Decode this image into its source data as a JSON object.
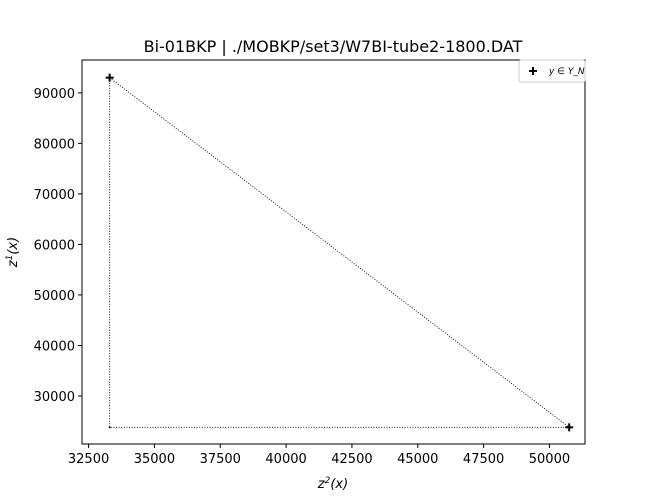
{
  "chart_data": {
    "type": "scatter",
    "title": "Bi-01BKP | ./MOBKP/set3/W7BI-tube2-1800.DAT",
    "xlabel": "z²(x)",
    "ylabel": "z¹(x)",
    "xlim": [
      32250,
      51350
    ],
    "ylim": [
      20500,
      96500
    ],
    "x_ticks": [
      32500,
      35000,
      37500,
      40000,
      42500,
      45000,
      47500,
      50000
    ],
    "y_ticks": [
      30000,
      40000,
      50000,
      60000,
      70000,
      80000,
      90000
    ],
    "x_tick_labels": [
      "32500",
      "35000",
      "37500",
      "40000",
      "42500",
      "45000",
      "47500",
      "50000"
    ],
    "y_tick_labels": [
      "30000",
      "40000",
      "50000",
      "60000",
      "70000",
      "80000",
      "90000"
    ],
    "grid": false,
    "legend": {
      "placement": "top-right",
      "entries": [
        "y ∈ Y_N"
      ]
    },
    "series": [
      {
        "name": "y ∈ Y_N",
        "marker": "plus",
        "color": "#000000",
        "points": [
          {
            "x": 33300,
            "y": 93000
          },
          {
            "x": 50750,
            "y": 23800
          }
        ]
      }
    ],
    "outline": {
      "style": "dotted",
      "color": "#000000",
      "points": [
        {
          "x": 33300,
          "y": 93000
        },
        {
          "x": 50750,
          "y": 23800
        },
        {
          "x": 33300,
          "y": 23800
        }
      ]
    }
  }
}
